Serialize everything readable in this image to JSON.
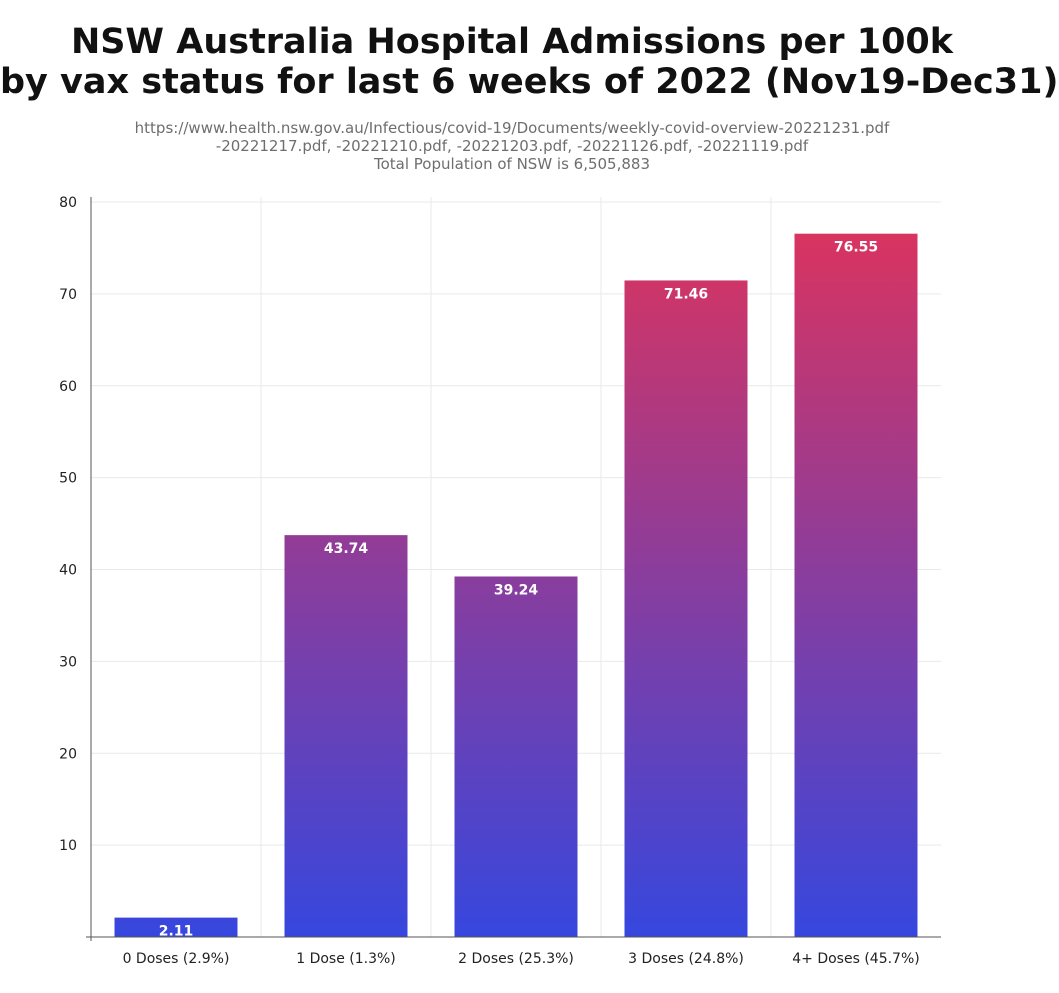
{
  "chart_data": {
    "type": "bar",
    "title_lines": [
      "NSW Australia Hospital Admissions per 100k",
      "by vax status for last 6 weeks of 2022 (Nov19-Dec31)"
    ],
    "subtitle_lines": [
      "https://www.health.nsw.gov.au/Infectious/covid-19/Documents/weekly-covid-overview-20221231.pdf",
      "-20221217.pdf, -20221210.pdf, -20221203.pdf, -20221126.pdf, -20221119.pdf",
      "Total Population of NSW is 6,505,883"
    ],
    "categories": [
      "0 Doses (2.9%)",
      "1 Dose (1.3%)",
      "2 Doses (25.3%)",
      "3 Doses (24.8%)",
      "4+ Doses (45.7%)"
    ],
    "values": [
      2.11,
      43.74,
      39.24,
      71.46,
      76.55
    ],
    "data_labels": [
      "2.11",
      "43.74",
      "39.24",
      "71.46",
      "76.55"
    ],
    "xlabel": "",
    "ylabel": "",
    "ylim": [
      0,
      80
    ],
    "yticks": [
      10,
      20,
      30,
      40,
      50,
      60,
      70,
      80
    ],
    "grid": true,
    "legend": "none",
    "colors": {
      "bar_top": "#e0335a",
      "bar_bottom": "#3647de",
      "grid": "#e9e9e9",
      "axis": "#555555",
      "label_text": "#ffffff",
      "tick_text": "#222222"
    }
  }
}
